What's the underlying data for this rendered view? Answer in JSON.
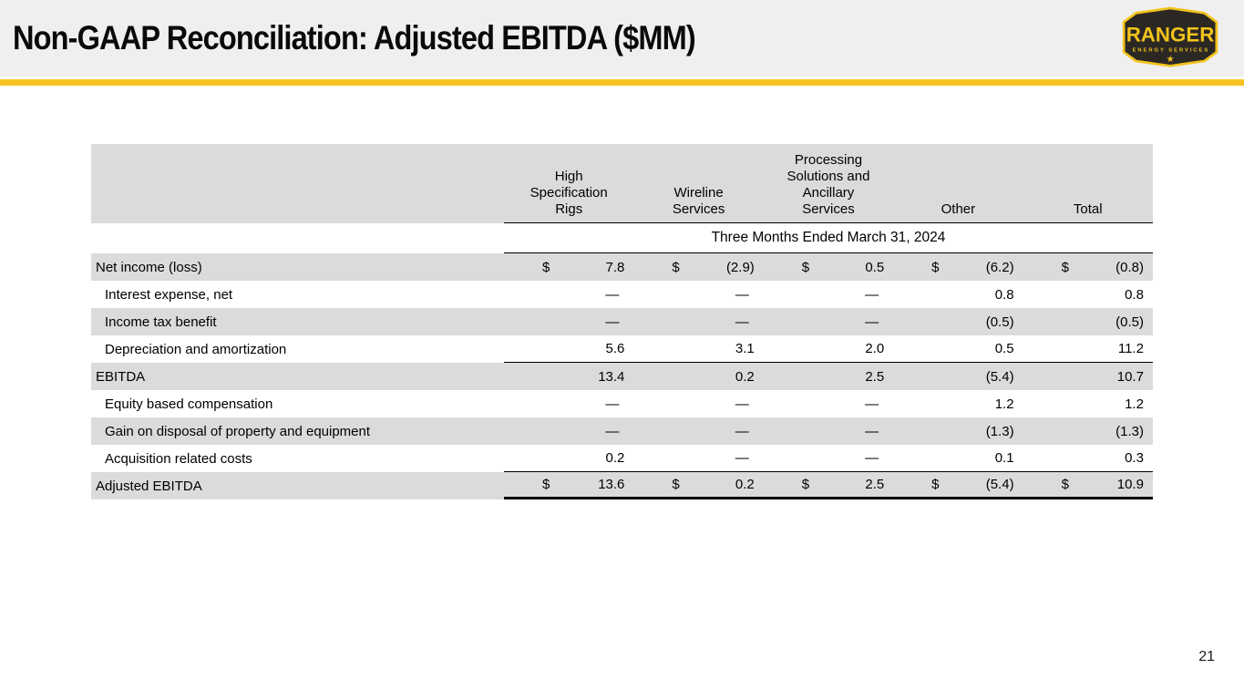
{
  "slide": {
    "title": "Non-GAAP Reconciliation: Adjusted EBITDA ($MM)",
    "page_number": "21"
  },
  "logo": {
    "name": "RANGER",
    "subtitle": "ENERGY SERVICES",
    "star": "★",
    "badge_color": "#2B2824",
    "accent_color": "#F2C31B"
  },
  "theme": {
    "header_bg": "#EFEFEF",
    "accent_bar": "#F6C324",
    "row_shade": "#DBDBDB"
  },
  "table": {
    "columns": [
      "High Specification Rigs",
      "Wireline Services",
      "Processing Solutions and Ancillary Services",
      "Other",
      "Total"
    ],
    "period_header": "Three Months Ended March 31, 2024",
    "currency_symbol": "$",
    "rows": [
      {
        "label": "Net income (loss)",
        "indent": false,
        "currency": true,
        "values": [
          "7.8",
          "(2.9)",
          "0.5",
          "(6.2)",
          "(0.8)"
        ],
        "border_bottom": "none"
      },
      {
        "label": "Interest expense, net",
        "indent": true,
        "currency": false,
        "values": [
          "—",
          "—",
          "—",
          "0.8",
          "0.8"
        ],
        "border_bottom": "none"
      },
      {
        "label": "Income tax benefit",
        "indent": true,
        "currency": false,
        "values": [
          "—",
          "—",
          "—",
          "(0.5)",
          "(0.5)"
        ],
        "border_bottom": "none"
      },
      {
        "label": "Depreciation and amortization",
        "indent": true,
        "currency": false,
        "values": [
          "5.6",
          "3.1",
          "2.0",
          "0.5",
          "11.2"
        ],
        "border_bottom": "thin"
      },
      {
        "label": "EBITDA",
        "indent": false,
        "currency": false,
        "values": [
          "13.4",
          "0.2",
          "2.5",
          "(5.4)",
          "10.7"
        ],
        "border_bottom": "none"
      },
      {
        "label": "Equity based compensation",
        "indent": true,
        "currency": false,
        "values": [
          "—",
          "—",
          "—",
          "1.2",
          "1.2"
        ],
        "border_bottom": "none"
      },
      {
        "label": "Gain on disposal of property and equipment",
        "indent": true,
        "currency": false,
        "values": [
          "—",
          "—",
          "—",
          "(1.3)",
          "(1.3)"
        ],
        "border_bottom": "none"
      },
      {
        "label": "Acquisition related costs",
        "indent": true,
        "currency": false,
        "values": [
          "0.2",
          "—",
          "—",
          "0.1",
          "0.3"
        ],
        "border_bottom": "thin"
      },
      {
        "label": "Adjusted EBITDA",
        "indent": false,
        "currency": true,
        "values": [
          "13.6",
          "0.2",
          "2.5",
          "(5.4)",
          "10.9"
        ],
        "border_bottom": "thick"
      }
    ]
  }
}
